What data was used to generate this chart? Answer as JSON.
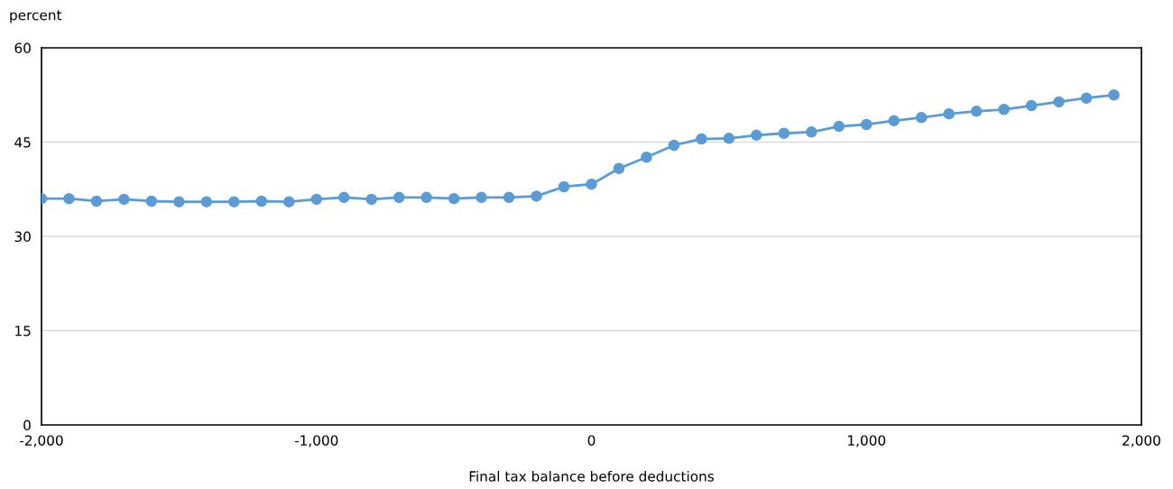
{
  "chart_data": {
    "type": "line",
    "ylabel": "percent",
    "xlabel": "Final tax balance before deductions",
    "x": [
      -2000,
      -1900,
      -1800,
      -1700,
      -1600,
      -1500,
      -1400,
      -1300,
      -1200,
      -1100,
      -1000,
      -900,
      -800,
      -700,
      -600,
      -500,
      -400,
      -300,
      -200,
      -100,
      0,
      100,
      200,
      300,
      400,
      500,
      600,
      700,
      800,
      900,
      1000,
      1100,
      1200,
      1300,
      1400,
      1500,
      1600,
      1700,
      1800,
      1900
    ],
    "series": [
      {
        "color": "#5b9bd5",
        "values": [
          36.0,
          36.0,
          35.6,
          35.9,
          35.6,
          35.5,
          35.5,
          35.5,
          35.6,
          35.5,
          35.9,
          36.2,
          35.9,
          36.2,
          36.2,
          36.0,
          36.2,
          36.2,
          36.4,
          37.9,
          38.3,
          40.8,
          42.6,
          44.5,
          45.5,
          45.6,
          46.1,
          46.4,
          46.6,
          47.5,
          47.8,
          48.4,
          48.9,
          49.5,
          49.9,
          50.2,
          50.8,
          51.4,
          52.0,
          52.5
        ]
      }
    ],
    "xlim": [
      -2000,
      2000
    ],
    "xticks": [
      {
        "value": -2000,
        "label": "-2,000"
      },
      {
        "value": -1000,
        "label": "-1,000"
      },
      0,
      {
        "value": 1000,
        "label": "1,000"
      },
      {
        "value": 2000,
        "label": "2,000"
      }
    ],
    "ylim": [
      0,
      60
    ],
    "yticks": [
      0,
      15,
      30,
      45,
      60
    ],
    "grid": "y",
    "marker": "circle",
    "line_style": "solid"
  }
}
